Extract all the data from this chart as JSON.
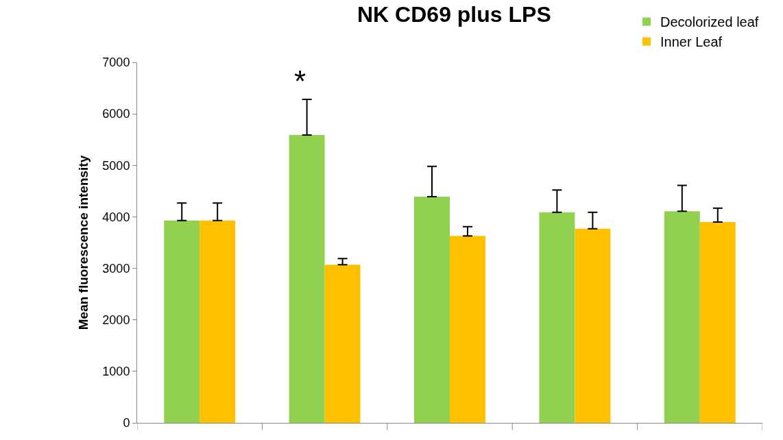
{
  "chart_data": {
    "type": "bar",
    "title": "NK CD69 plus LPS",
    "ylabel": "Mean fluorescence intensity",
    "categories": [
      null,
      null,
      null,
      null,
      null
    ],
    "series": [
      {
        "name": "Decolorized leaf",
        "color": "#92d050",
        "values": [
          3930,
          5590,
          4390,
          4090,
          4110
        ],
        "errors": [
          [
            3930,
            4270
          ],
          [
            5590,
            6280
          ],
          [
            4390,
            4980
          ],
          [
            4090,
            4520
          ],
          [
            4110,
            4610
          ]
        ]
      },
      {
        "name": "Inner Leaf",
        "color": "#ffc000",
        "values": [
          3930,
          3070,
          3630,
          3770,
          3900
        ],
        "errors": [
          [
            3930,
            4270
          ],
          [
            3070,
            3190
          ],
          [
            3630,
            3810
          ],
          [
            3770,
            4090
          ],
          [
            3900,
            4170
          ]
        ]
      }
    ],
    "annotations": [
      "*"
    ],
    "ylim": [
      0,
      7000
    ],
    "yticks": [
      0,
      1000,
      2000,
      3000,
      4000,
      5000,
      6000,
      7000
    ],
    "grid": false,
    "legend": "top right"
  }
}
